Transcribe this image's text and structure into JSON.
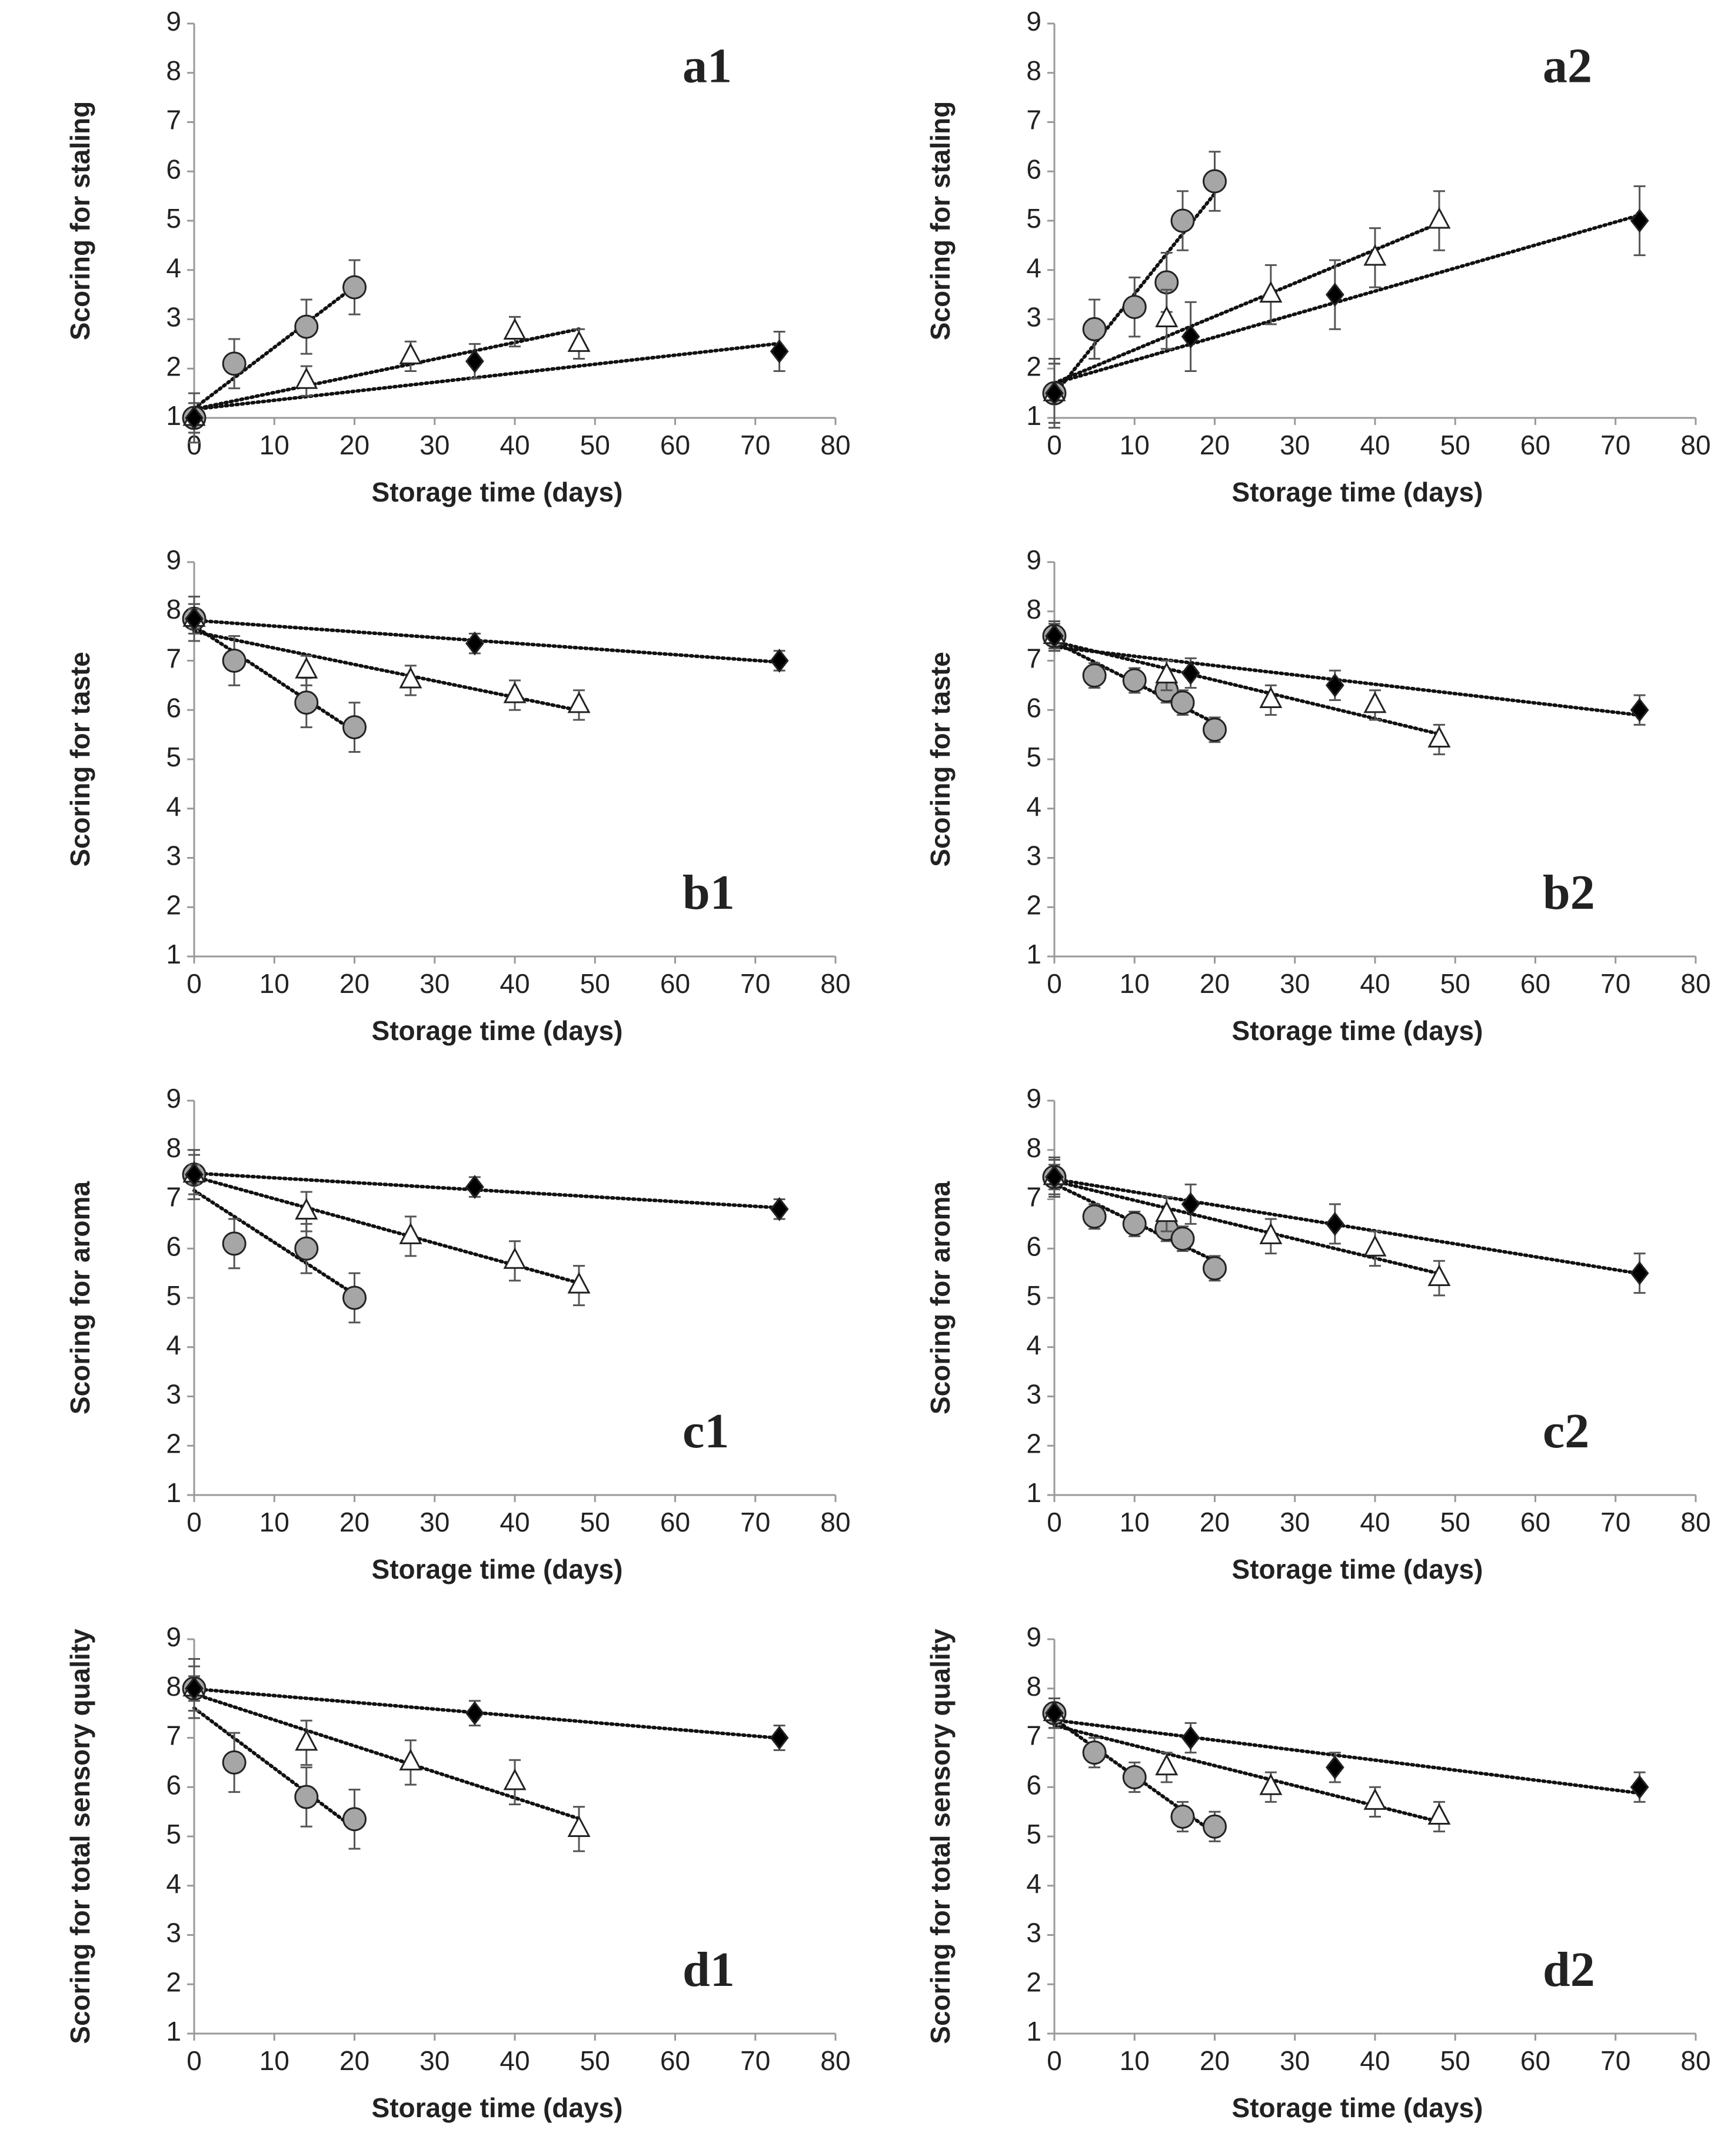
{
  "chart_data": [
    {
      "type": "scatter",
      "annotation": "a1",
      "ylabel": "Scoring for staling",
      "xlabel": "Storage time (days)",
      "trendline": "linear",
      "xlim": [
        0,
        80
      ],
      "ylim": [
        1,
        9
      ],
      "xticks": [
        0,
        10,
        20,
        30,
        40,
        50,
        60,
        70,
        80
      ],
      "yticks": [
        1,
        2,
        3,
        4,
        5,
        6,
        7,
        8,
        9
      ],
      "series": [
        {
          "marker": "circle",
          "color": "#a6a6a6",
          "x": [
            0,
            5,
            14,
            20
          ],
          "values": [
            1,
            2.1,
            2.85,
            3.65
          ],
          "errors": [
            0.5,
            0.5,
            0.55,
            0.55
          ]
        },
        {
          "marker": "triangle",
          "color": "#ffffff",
          "x": [
            0,
            14,
            27,
            40,
            48
          ],
          "values": [
            1,
            1.75,
            2.25,
            2.75,
            2.5
          ],
          "errors": [
            0.3,
            0.3,
            0.3,
            0.3,
            0.3
          ]
        },
        {
          "marker": "diamond",
          "color": "#000000",
          "x": [
            0,
            35,
            73
          ],
          "values": [
            1,
            2.15,
            2.35
          ],
          "errors": [
            0.3,
            0.35,
            0.4
          ]
        }
      ]
    },
    {
      "type": "scatter",
      "annotation": "a2",
      "ylabel": "Scoring for staling",
      "xlabel": "Storage time (days)",
      "trendline": "linear",
      "xlim": [
        0,
        80
      ],
      "ylim": [
        1,
        9
      ],
      "xticks": [
        0,
        10,
        20,
        30,
        40,
        50,
        60,
        70,
        80
      ],
      "yticks": [
        1,
        2,
        3,
        4,
        5,
        6,
        7,
        8,
        9
      ],
      "series": [
        {
          "marker": "circle",
          "color": "#a6a6a6",
          "x": [
            0,
            5,
            10,
            14,
            16,
            20
          ],
          "values": [
            1.5,
            2.8,
            3.25,
            3.75,
            5,
            5.8
          ],
          "errors": [
            0.6,
            0.6,
            0.6,
            0.6,
            0.6,
            0.6
          ]
        },
        {
          "marker": "triangle",
          "color": "#ffffff",
          "x": [
            0,
            14,
            27,
            40,
            48
          ],
          "values": [
            1.5,
            3,
            3.5,
            4.25,
            5
          ],
          "errors": [
            0.6,
            0.6,
            0.6,
            0.6,
            0.6
          ]
        },
        {
          "marker": "diamond",
          "color": "#000000",
          "x": [
            0,
            17,
            35,
            73
          ],
          "values": [
            1.5,
            2.65,
            3.5,
            5
          ],
          "errors": [
            0.7,
            0.7,
            0.7,
            0.7
          ]
        }
      ]
    },
    {
      "type": "scatter",
      "annotation": "b1",
      "ylabel": "Scoring for taste",
      "xlabel": "Storage time (days)",
      "trendline": "linear",
      "xlim": [
        0,
        80
      ],
      "ylim": [
        1,
        9
      ],
      "xticks": [
        0,
        10,
        20,
        30,
        40,
        50,
        60,
        70,
        80
      ],
      "yticks": [
        1,
        2,
        3,
        4,
        5,
        6,
        7,
        8,
        9
      ],
      "series": [
        {
          "marker": "circle",
          "color": "#a6a6a6",
          "x": [
            0,
            5,
            14,
            20
          ],
          "values": [
            7.85,
            7,
            6.15,
            5.65
          ],
          "errors": [
            0.45,
            0.5,
            0.5,
            0.5
          ]
        },
        {
          "marker": "triangle",
          "color": "#ffffff",
          "x": [
            0,
            14,
            27,
            40,
            48
          ],
          "values": [
            7.85,
            6.8,
            6.6,
            6.3,
            6.1
          ],
          "errors": [
            0.3,
            0.3,
            0.3,
            0.3,
            0.3
          ]
        },
        {
          "marker": "diamond",
          "color": "#000000",
          "x": [
            0,
            35,
            73
          ],
          "values": [
            7.85,
            7.35,
            7
          ],
          "errors": [
            0.2,
            0.2,
            0.2
          ]
        }
      ]
    },
    {
      "type": "scatter",
      "annotation": "b2",
      "ylabel": "Scoring for taste",
      "xlabel": "Storage time (days)",
      "trendline": "linear",
      "xlim": [
        0,
        80
      ],
      "ylim": [
        1,
        9
      ],
      "xticks": [
        0,
        10,
        20,
        30,
        40,
        50,
        60,
        70,
        80
      ],
      "yticks": [
        1,
        2,
        3,
        4,
        5,
        6,
        7,
        8,
        9
      ],
      "series": [
        {
          "marker": "circle",
          "color": "#a6a6a6",
          "x": [
            0,
            5,
            10,
            14,
            16,
            20
          ],
          "values": [
            7.5,
            6.7,
            6.6,
            6.4,
            6.15,
            5.6
          ],
          "errors": [
            0.25,
            0.25,
            0.25,
            0.25,
            0.25,
            0.25
          ]
        },
        {
          "marker": "triangle",
          "color": "#ffffff",
          "x": [
            0,
            14,
            27,
            40,
            48
          ],
          "values": [
            7.5,
            6.7,
            6.2,
            6.1,
            5.4
          ],
          "errors": [
            0.3,
            0.3,
            0.3,
            0.3,
            0.3
          ]
        },
        {
          "marker": "diamond",
          "color": "#000000",
          "x": [
            0,
            17,
            35,
            73
          ],
          "values": [
            7.5,
            6.75,
            6.5,
            6
          ],
          "errors": [
            0.3,
            0.3,
            0.3,
            0.3
          ]
        }
      ]
    },
    {
      "type": "scatter",
      "annotation": "c1",
      "ylabel": "Scoring for aroma",
      "xlabel": "Storage time (days)",
      "trendline": "linear",
      "xlim": [
        0,
        80
      ],
      "ylim": [
        1,
        9
      ],
      "xticks": [
        0,
        10,
        20,
        30,
        40,
        50,
        60,
        70,
        80
      ],
      "yticks": [
        1,
        2,
        3,
        4,
        5,
        6,
        7,
        8,
        9
      ],
      "series": [
        {
          "marker": "circle",
          "color": "#a6a6a6",
          "x": [
            0,
            5,
            14,
            20
          ],
          "values": [
            7.5,
            6.1,
            6,
            5
          ],
          "errors": [
            0.5,
            0.5,
            0.5,
            0.5
          ]
        },
        {
          "marker": "triangle",
          "color": "#ffffff",
          "x": [
            0,
            14,
            27,
            40,
            48
          ],
          "values": [
            7.5,
            6.75,
            6.25,
            5.75,
            5.25
          ],
          "errors": [
            0.4,
            0.4,
            0.4,
            0.4,
            0.4
          ]
        },
        {
          "marker": "diamond",
          "color": "#000000",
          "x": [
            0,
            35,
            73
          ],
          "values": [
            7.5,
            7.25,
            6.8
          ],
          "errors": [
            0.2,
            0.2,
            0.2
          ]
        }
      ]
    },
    {
      "type": "scatter",
      "annotation": "c2",
      "ylabel": "Scoring for aroma",
      "xlabel": "Storage time (days)",
      "trendline": "linear",
      "xlim": [
        0,
        80
      ],
      "ylim": [
        1,
        9
      ],
      "xticks": [
        0,
        10,
        20,
        30,
        40,
        50,
        60,
        70,
        80
      ],
      "yticks": [
        1,
        2,
        3,
        4,
        5,
        6,
        7,
        8,
        9
      ],
      "series": [
        {
          "marker": "circle",
          "color": "#a6a6a6",
          "x": [
            0,
            5,
            10,
            14,
            16,
            20
          ],
          "values": [
            7.45,
            6.65,
            6.5,
            6.4,
            6.2,
            5.6
          ],
          "errors": [
            0.25,
            0.25,
            0.25,
            0.25,
            0.25,
            0.25
          ]
        },
        {
          "marker": "triangle",
          "color": "#ffffff",
          "x": [
            0,
            14,
            27,
            40,
            48
          ],
          "values": [
            7.45,
            6.7,
            6.25,
            6,
            5.4
          ],
          "errors": [
            0.35,
            0.35,
            0.35,
            0.35,
            0.35
          ]
        },
        {
          "marker": "diamond",
          "color": "#000000",
          "x": [
            0,
            17,
            35,
            73
          ],
          "values": [
            7.45,
            6.9,
            6.5,
            5.5
          ],
          "errors": [
            0.4,
            0.4,
            0.4,
            0.4
          ]
        }
      ]
    },
    {
      "type": "scatter",
      "annotation": "d1",
      "ylabel": "Scoring for total sensory quality",
      "xlabel": "Storage time (days)",
      "trendline": "linear",
      "xlim": [
        0,
        80
      ],
      "ylim": [
        1,
        9
      ],
      "xticks": [
        0,
        10,
        20,
        30,
        40,
        50,
        60,
        70,
        80
      ],
      "yticks": [
        1,
        2,
        3,
        4,
        5,
        6,
        7,
        8,
        9
      ],
      "series": [
        {
          "marker": "circle",
          "color": "#a6a6a6",
          "x": [
            0,
            5,
            14,
            20
          ],
          "values": [
            8,
            6.5,
            5.8,
            5.35
          ],
          "errors": [
            0.6,
            0.6,
            0.6,
            0.6
          ]
        },
        {
          "marker": "triangle",
          "color": "#ffffff",
          "x": [
            0,
            14,
            27,
            40,
            48
          ],
          "values": [
            8,
            6.9,
            6.5,
            6.1,
            5.15
          ],
          "errors": [
            0.45,
            0.45,
            0.45,
            0.45,
            0.45
          ]
        },
        {
          "marker": "diamond",
          "color": "#000000",
          "x": [
            0,
            35,
            73
          ],
          "values": [
            8,
            7.5,
            7
          ],
          "errors": [
            0.25,
            0.25,
            0.25
          ]
        }
      ]
    },
    {
      "type": "scatter",
      "annotation": "d2",
      "ylabel": "Scoring for total sensory quality",
      "xlabel": "Storage time (days)",
      "trendline": "linear",
      "xlim": [
        0,
        80
      ],
      "ylim": [
        1,
        9
      ],
      "xticks": [
        0,
        10,
        20,
        30,
        40,
        50,
        60,
        70,
        80
      ],
      "yticks": [
        1,
        2,
        3,
        4,
        5,
        6,
        7,
        8,
        9
      ],
      "series": [
        {
          "marker": "circle",
          "color": "#a6a6a6",
          "x": [
            0,
            5,
            10,
            16,
            20
          ],
          "values": [
            7.5,
            6.7,
            6.2,
            5.4,
            5.2
          ],
          "errors": [
            0.3,
            0.3,
            0.3,
            0.3,
            0.3
          ]
        },
        {
          "marker": "triangle",
          "color": "#ffffff",
          "x": [
            0,
            14,
            27,
            40,
            48
          ],
          "values": [
            7.5,
            6.4,
            6,
            5.7,
            5.4
          ],
          "errors": [
            0.3,
            0.3,
            0.3,
            0.3,
            0.3
          ]
        },
        {
          "marker": "diamond",
          "color": "#000000",
          "x": [
            0,
            17,
            35,
            73
          ],
          "values": [
            7.5,
            7,
            6.4,
            6
          ],
          "errors": [
            0.3,
            0.3,
            0.3,
            0.3
          ]
        }
      ]
    }
  ]
}
